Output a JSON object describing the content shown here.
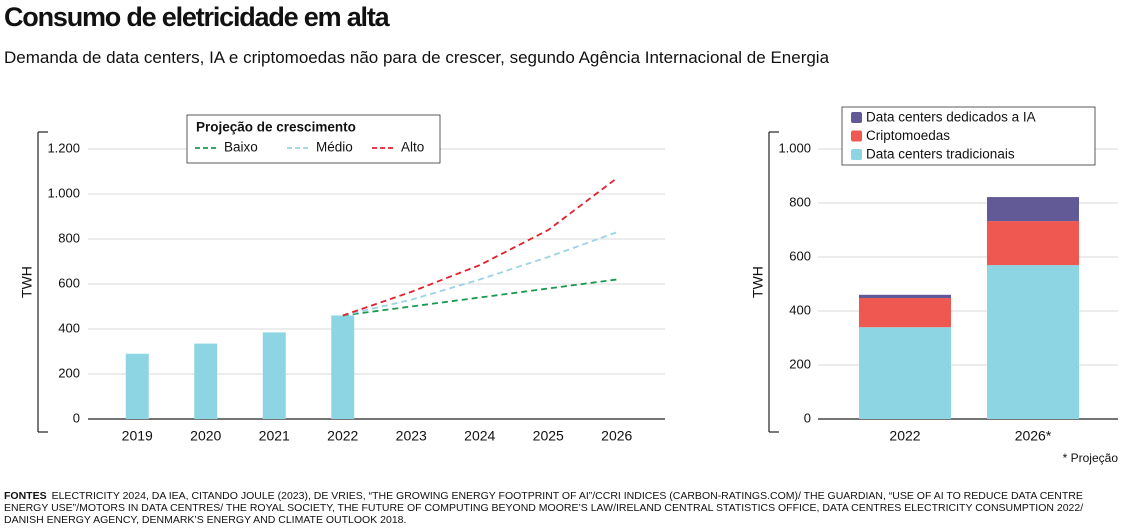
{
  "title": "Consumo de eletricidade em alta",
  "subtitle": "Demanda de data centers, IA e criptomoedas não para de crescer, segundo Agência Internacional de Energia",
  "note": "* Projeção",
  "sources": {
    "label": "FONTES",
    "text": "Electricity 2024, da IEA, citando Joule (2023), de Vries, “The growing energy footprint of AI”/CCRI Indices (carbon-ratings.com)/ The Guardian, “Use of AI to reduce data centre energy use”/Motors in data centres/ The Royal Society, The future of computing beyond Moore’s Law/Ireland Central Statistics Office, Data Centres Electricity Consumption 2022/ Danish Energy Agency, Denmark’s Energy and Climate Outlook 2018."
  },
  "chart_data": [
    {
      "type": "bar_line",
      "ylabel": "TWH",
      "categories": [
        "2019",
        "2020",
        "2021",
        "2022",
        "2023",
        "2024",
        "2025",
        "2026"
      ],
      "values": [
        290,
        335,
        385,
        460,
        null,
        null,
        null,
        null
      ],
      "color": "#8ed5e3",
      "legend_title": "Projeção de crescimento",
      "series": [
        {
          "name": "Baixo",
          "color": "#1a9a50",
          "values": [
            null,
            null,
            null,
            460,
            500,
            540,
            580,
            620
          ]
        },
        {
          "name": "Médio",
          "color": "#9bd3e6",
          "values": [
            null,
            null,
            null,
            460,
            530,
            620,
            720,
            830
          ]
        },
        {
          "name": "Alto",
          "color": "#e3212b",
          "values": [
            null,
            null,
            null,
            460,
            565,
            684,
            840,
            1070
          ]
        }
      ],
      "ylim": [
        0,
        1200
      ],
      "yticks": [
        0,
        200,
        400,
        600,
        800,
        {
          "value": 1000,
          "label": "1.000"
        },
        {
          "value": 1200,
          "label": "1.200"
        }
      ],
      "grid": true
    },
    {
      "type": "stacked_bar",
      "ylabel": "TWH",
      "categories": [
        "2022",
        "2026*"
      ],
      "series": [
        {
          "name": "Data centers tradicionais",
          "color": "#8ed5e3",
          "values": [
            340,
            570
          ]
        },
        {
          "name": "Criptomoedas",
          "color": "#ef5751",
          "values": [
            108,
            163
          ]
        },
        {
          "name": "Data centers dedicados a IA",
          "color": "#625a97",
          "values": [
            12,
            89
          ]
        }
      ],
      "ylim": [
        0,
        1000
      ],
      "yticks": [
        0,
        200,
        400,
        600,
        800,
        {
          "value": 1000,
          "label": "1.000"
        }
      ],
      "grid": true
    }
  ]
}
